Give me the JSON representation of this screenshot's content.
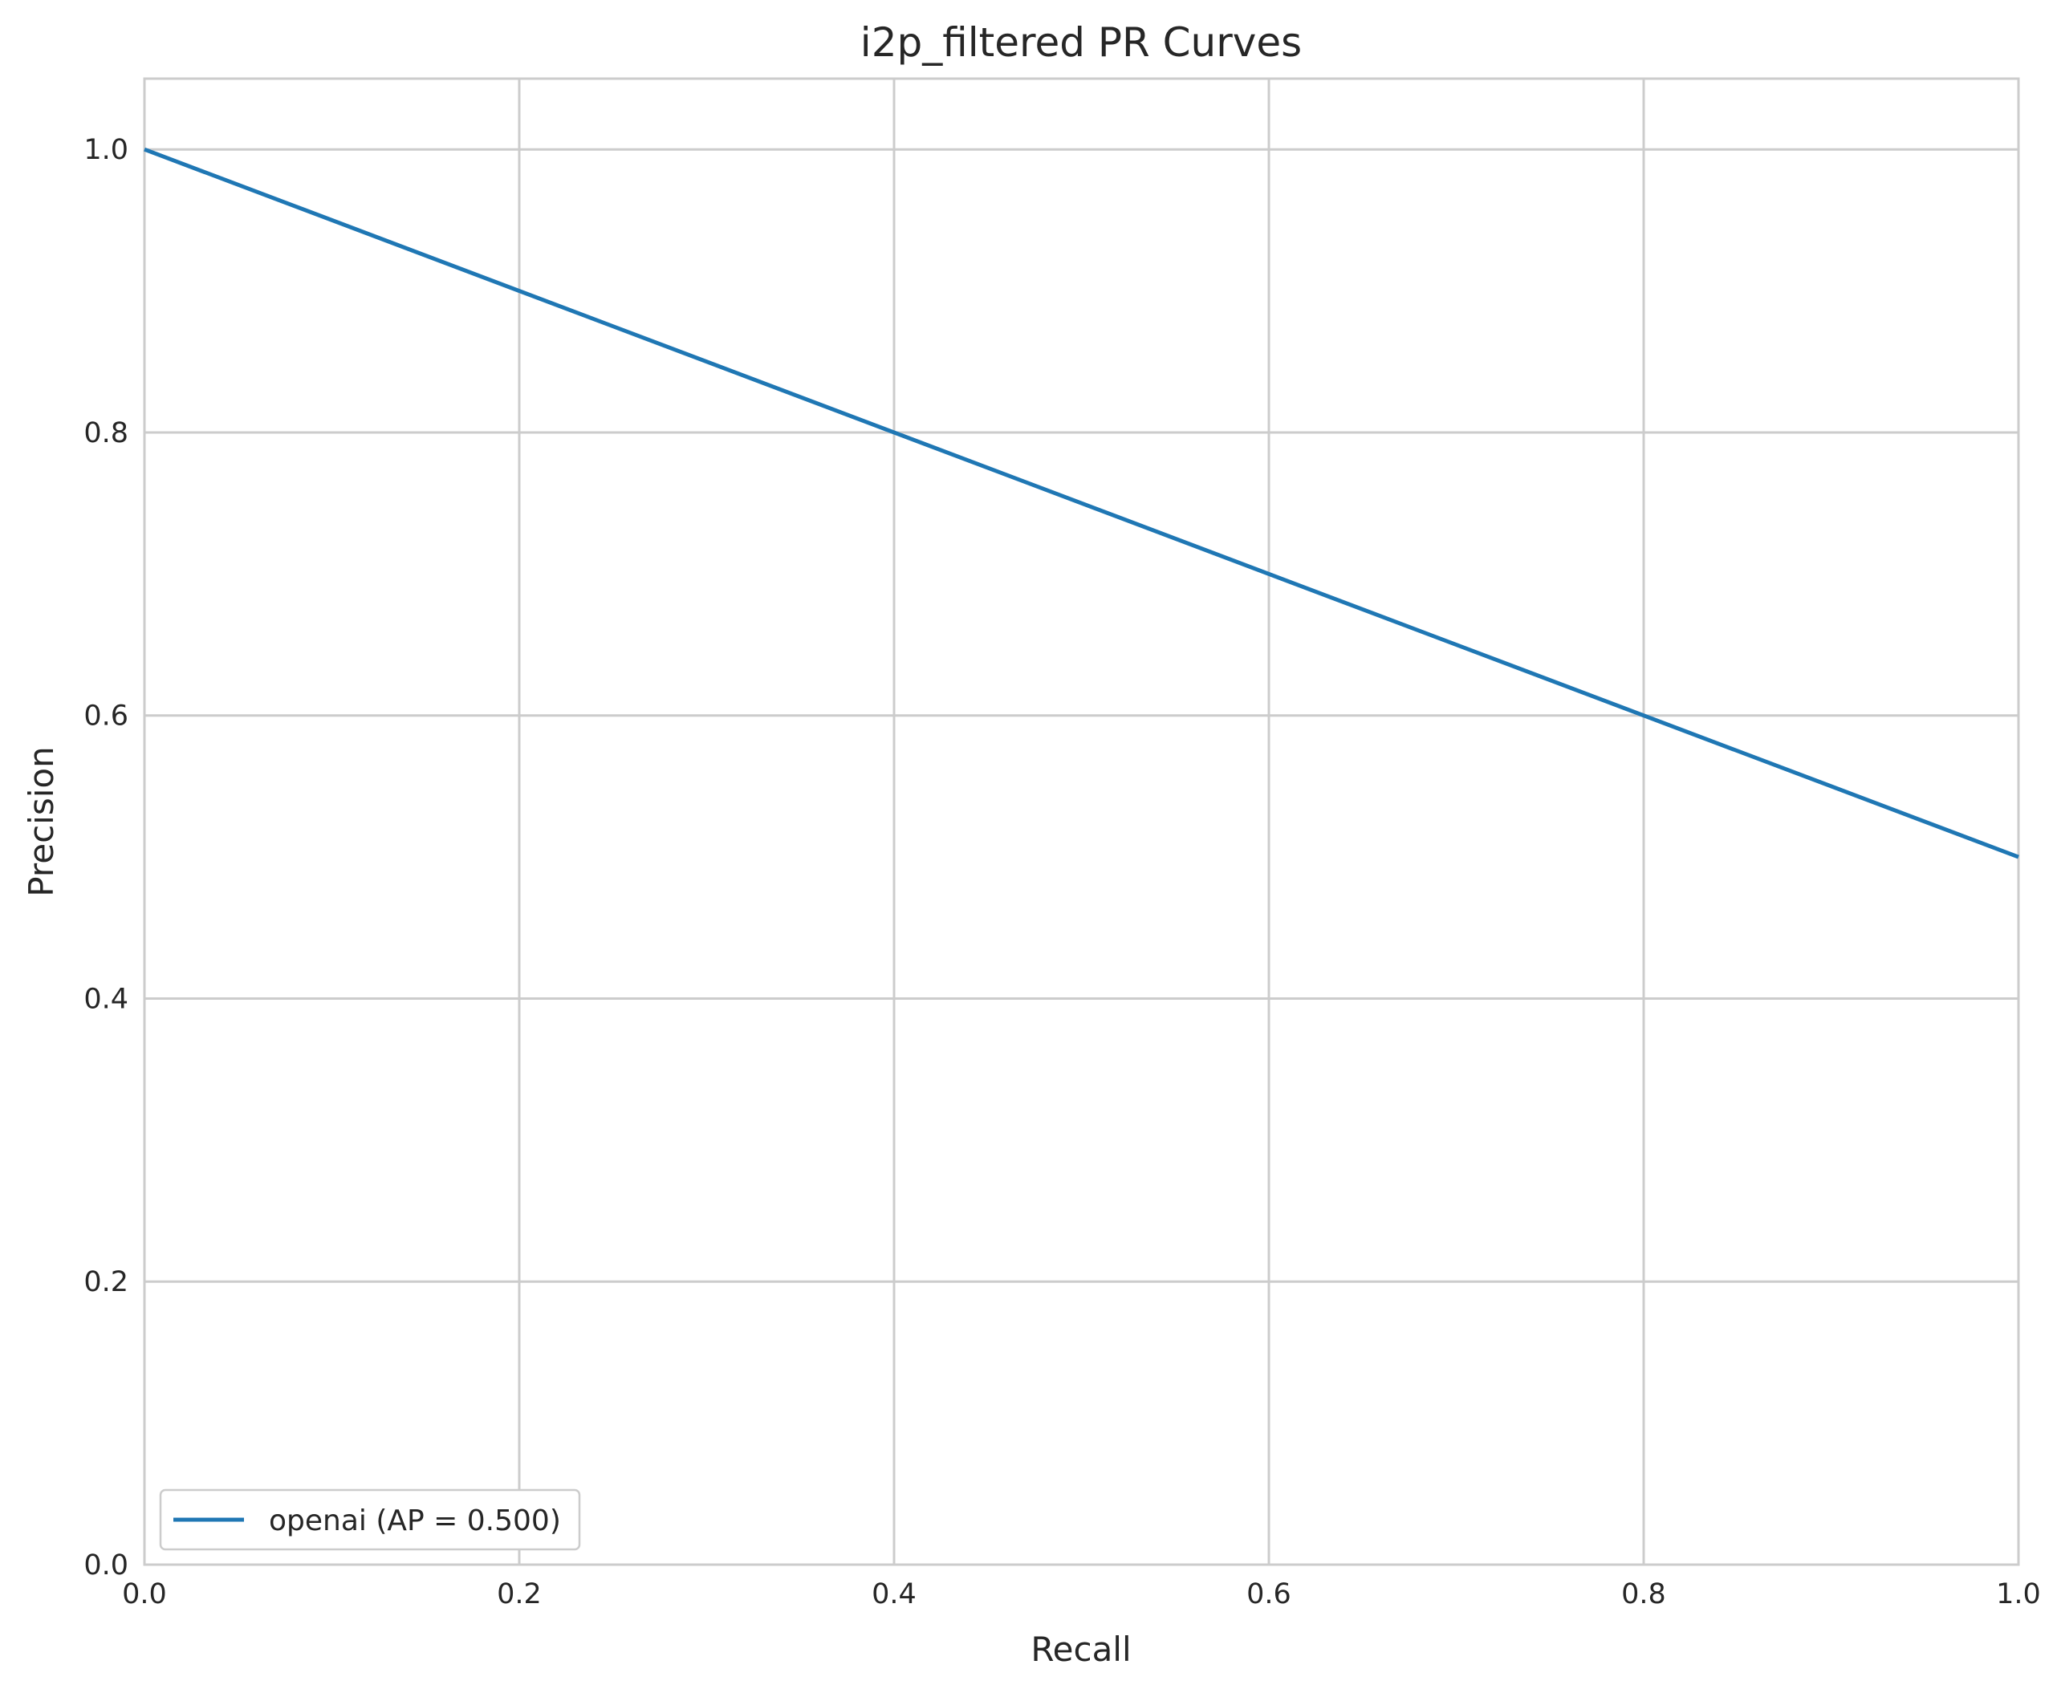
{
  "chart_data": {
    "type": "line",
    "title": "i2p_filtered PR Curves",
    "xlabel": "Recall",
    "ylabel": "Precision",
    "xlim": [
      0.0,
      1.0
    ],
    "ylim": [
      0.0,
      1.05
    ],
    "x_ticks": [
      "0.0",
      "0.2",
      "0.4",
      "0.6",
      "0.8",
      "1.0"
    ],
    "y_ticks": [
      "0.0",
      "0.2",
      "0.4",
      "0.6",
      "0.8",
      "1.0"
    ],
    "grid": true,
    "legend_position": "lower-left",
    "series": [
      {
        "name": "openai (AP = 0.500)",
        "color": "#1f77b4",
        "x": [
          0.0,
          1.0
        ],
        "y": [
          1.0,
          0.5
        ]
      }
    ]
  }
}
